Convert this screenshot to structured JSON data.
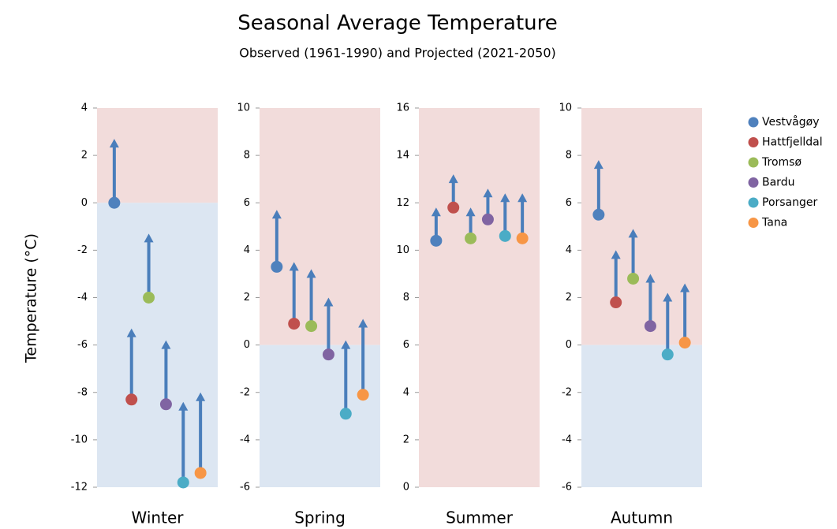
{
  "chart_data": {
    "type": "arrow",
    "title": "Seasonal Average Temperature",
    "subtitle": "Observed (1961-1990) and Projected (2021-2050)",
    "y_label": "Temperature (°C)",
    "arrow_color": "#4a7ebb",
    "above_zero_color": "#f2dcdb",
    "below_zero_color": "#dce6f2",
    "series": [
      {
        "name": "Vestvågøy",
        "color": "#4f81bd"
      },
      {
        "name": "Hattfjelldal",
        "color": "#c0504d"
      },
      {
        "name": "Tromsø",
        "color": "#9bbb59"
      },
      {
        "name": "Bardu",
        "color": "#8064a2"
      },
      {
        "name": "Porsanger",
        "color": "#4bacc6"
      },
      {
        "name": "Tana",
        "color": "#f79646"
      }
    ],
    "panels": [
      {
        "name": "Winter",
        "ylim": [
          -12,
          4
        ],
        "yticks": [
          -12,
          -10,
          -8,
          -6,
          -4,
          -2,
          0,
          2,
          4
        ],
        "observed": [
          0,
          -8.3,
          -4,
          -8.5,
          -11.8,
          -11.4
        ],
        "projected": [
          2.7,
          -5.3,
          -1.3,
          -5.8,
          -8.4,
          -8.0
        ]
      },
      {
        "name": "Spring",
        "ylim": [
          -6,
          10
        ],
        "yticks": [
          -6,
          -4,
          -2,
          0,
          2,
          4,
          6,
          8,
          10
        ],
        "observed": [
          3.3,
          0.9,
          0.8,
          -0.4,
          -2.9,
          -2.1
        ],
        "projected": [
          5.7,
          3.5,
          3.2,
          2.0,
          0.2,
          1.1
        ]
      },
      {
        "name": "Summer",
        "ylim": [
          0,
          16
        ],
        "yticks": [
          0,
          2,
          4,
          6,
          8,
          10,
          12,
          14,
          16
        ],
        "observed": [
          10.4,
          11.8,
          10.5,
          11.3,
          10.6,
          10.5
        ],
        "projected": [
          11.8,
          13.2,
          11.8,
          12.6,
          12.4,
          12.4
        ]
      },
      {
        "name": "Autumn",
        "ylim": [
          -6,
          10
        ],
        "yticks": [
          -6,
          -4,
          -2,
          0,
          2,
          4,
          6,
          8,
          10
        ],
        "observed": [
          5.5,
          1.8,
          2.8,
          0.8,
          -0.4,
          0.1
        ],
        "projected": [
          7.8,
          4.0,
          4.9,
          3.0,
          2.2,
          2.6
        ]
      }
    ]
  }
}
